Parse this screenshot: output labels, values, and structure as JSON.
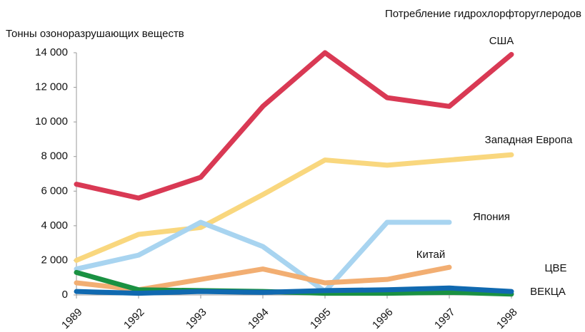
{
  "chart_data": {
    "type": "line",
    "title": "Потребление гидрохлорфторуглеродов",
    "y_label": "Тонны озоноразрушающих веществ",
    "categories": [
      "1989",
      "1992",
      "1993",
      "1994",
      "1995",
      "1996",
      "1997",
      "1998"
    ],
    "ylim": [
      0,
      14000
    ],
    "yticks": [
      0,
      {
        "value": 2000,
        "label": "2 000"
      },
      {
        "value": 4000,
        "label": "4 000"
      },
      {
        "value": 6000,
        "label": "6 000"
      },
      {
        "value": 8000,
        "label": "8 000"
      },
      {
        "value": 10000,
        "label": "10 000"
      },
      {
        "value": 12000,
        "label": "12 000"
      },
      {
        "value": 14000,
        "label": "14 000"
      }
    ],
    "series": [
      {
        "name": "США",
        "color": "#d93954",
        "values": [
          6400,
          5600,
          6800,
          10900,
          14000,
          11400,
          10900,
          13900
        ]
      },
      {
        "name": "Западная Европа",
        "color": "#f9d77e",
        "values": [
          2000,
          3500,
          3900,
          5800,
          7800,
          7500,
          7800,
          8100
        ]
      },
      {
        "name": "Япония",
        "color": "#a8d4f0",
        "values": [
          1500,
          2300,
          4200,
          2800,
          200,
          4200,
          4200,
          null
        ]
      },
      {
        "name": "Китай",
        "color": "#f2ae72",
        "values": [
          700,
          300,
          900,
          1500,
          700,
          900,
          1600,
          null
        ]
      },
      {
        "name": "ВЕКЦА",
        "color": "#1a9142",
        "values": [
          1300,
          300,
          250,
          200,
          100,
          100,
          150,
          50
        ]
      },
      {
        "name": "ЦВЕ",
        "color": "#1069b0",
        "values": [
          200,
          100,
          200,
          150,
          250,
          300,
          400,
          200
        ]
      }
    ]
  }
}
